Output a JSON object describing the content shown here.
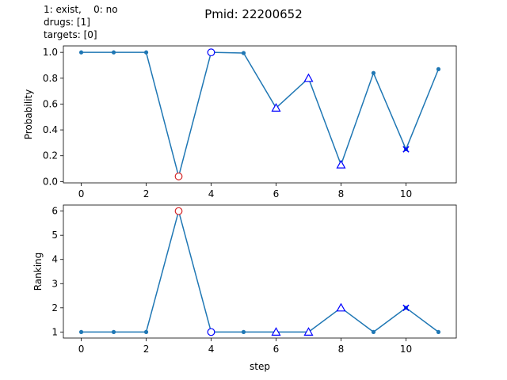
{
  "figure": {
    "title": "Pmid: 22200652",
    "legend_lines": [
      "1: exist,    0: no",
      "drugs: [1]",
      "targets: [0]"
    ]
  },
  "colors": {
    "line": "#1f77b4",
    "red_marker": "#d62728",
    "blue_marker": "#0000ff"
  },
  "chart_data": [
    {
      "type": "line",
      "ylabel": "Probability",
      "xlabel": "",
      "xlim": [
        -0.55,
        11.55
      ],
      "ylim": [
        -0.01,
        1.05
      ],
      "xticks": [
        "0",
        "2",
        "4",
        "6",
        "8",
        "10"
      ],
      "yticks": [
        "0.0",
        "0.2",
        "0.4",
        "0.6",
        "0.8",
        "1.0"
      ],
      "x": [
        0,
        1,
        2,
        3,
        4,
        5,
        6,
        7,
        8,
        9,
        10,
        11
      ],
      "values": [
        1.0,
        1.0,
        1.0,
        0.04,
        1.0,
        0.995,
        0.57,
        0.8,
        0.13,
        0.84,
        0.25,
        0.87
      ],
      "markers": [
        {
          "x": 3,
          "y": 0.04,
          "shape": "circle",
          "color": "red"
        },
        {
          "x": 4,
          "y": 1.0,
          "shape": "circle",
          "color": "blue"
        },
        {
          "x": 6,
          "y": 0.57,
          "shape": "triangle",
          "color": "blue"
        },
        {
          "x": 7,
          "y": 0.8,
          "shape": "triangle",
          "color": "blue"
        },
        {
          "x": 8,
          "y": 0.13,
          "shape": "triangle",
          "color": "blue"
        },
        {
          "x": 10,
          "y": 0.25,
          "shape": "x",
          "color": "blue"
        }
      ]
    },
    {
      "type": "line",
      "ylabel": "Ranking",
      "xlabel": "step",
      "xlim": [
        -0.55,
        11.55
      ],
      "ylim": [
        0.75,
        6.25
      ],
      "xticks": [
        "0",
        "2",
        "4",
        "6",
        "8",
        "10"
      ],
      "yticks": [
        "1",
        "2",
        "3",
        "4",
        "5",
        "6"
      ],
      "x": [
        0,
        1,
        2,
        3,
        4,
        5,
        6,
        7,
        8,
        9,
        10,
        11
      ],
      "values": [
        1,
        1,
        1,
        6,
        1,
        1,
        1,
        1,
        2,
        1,
        2,
        1
      ],
      "markers": [
        {
          "x": 3,
          "y": 6,
          "shape": "circle",
          "color": "red"
        },
        {
          "x": 4,
          "y": 1,
          "shape": "circle",
          "color": "blue"
        },
        {
          "x": 6,
          "y": 1,
          "shape": "triangle",
          "color": "blue"
        },
        {
          "x": 7,
          "y": 1,
          "shape": "triangle",
          "color": "blue"
        },
        {
          "x": 8,
          "y": 2,
          "shape": "triangle",
          "color": "blue"
        },
        {
          "x": 10,
          "y": 2,
          "shape": "x",
          "color": "blue"
        }
      ]
    }
  ]
}
